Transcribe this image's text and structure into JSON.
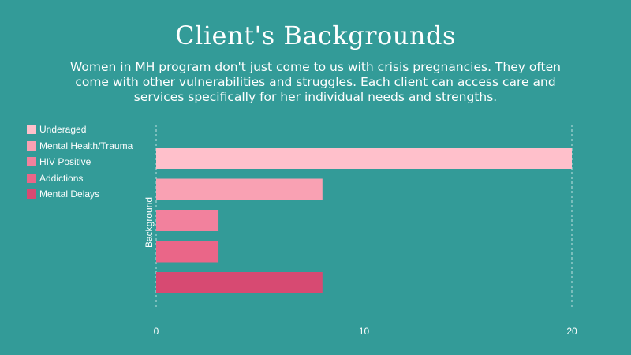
{
  "title": "Client's Backgrounds",
  "subtitle": "Women in MH program don't just come to us with crisis pregnancies. They often come with other vulnerabilities and struggles.  Each client can access care and services specifically for her individual needs and strengths.",
  "chart_data": {
    "type": "bar",
    "orientation": "horizontal",
    "categories": [
      "Underaged",
      "Mental Health/Trauma",
      "HIV Positive",
      "Addictions",
      "Mental Delays"
    ],
    "values": [
      20,
      8,
      3,
      3,
      8
    ],
    "colors": [
      "#ffc0cb",
      "#f9a1b3",
      "#f2819d",
      "#ea6688",
      "#d74a72"
    ],
    "ylabel": "Background",
    "xlim": [
      0,
      20
    ],
    "x_ticks": [
      "0",
      "10",
      "20"
    ],
    "grid": true,
    "legend_position": "top-left"
  }
}
